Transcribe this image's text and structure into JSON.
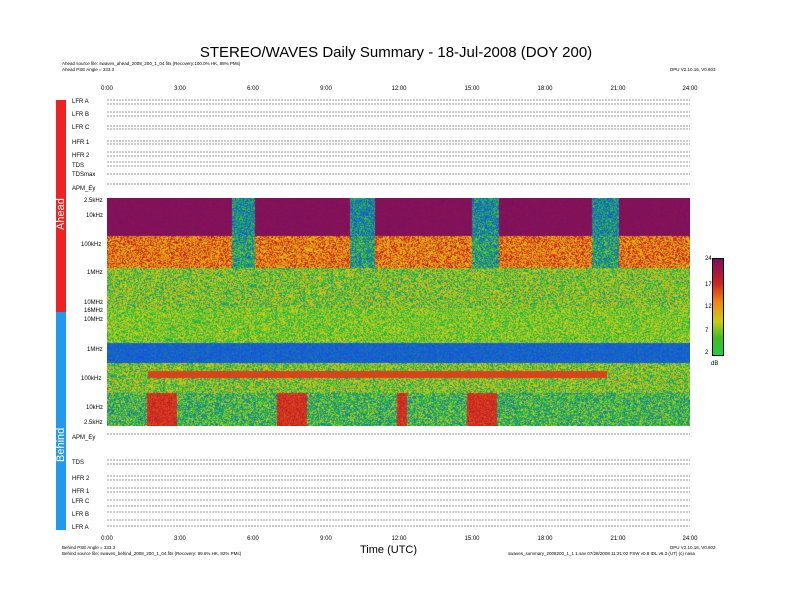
{
  "page": {
    "title": "STEREO/WAVES Daily Summary - 18-Jul-2008 (DOY 200)",
    "ahead_source": "Ahead source file: swaves_ahead_2008_200_1_04.fits (Recovery:100.0% HK, 88% PMs)",
    "ahead_pse": "Ahead PSE Angle = 333.3",
    "ahead_version": "DPU V2.10.16, V0.603",
    "behind_pse": "Behind PSE Angle = 333.3",
    "behind_source": "Behind source file: swaves_behind_2008_200_1_04.fits (Recovery: 99.6% HK, 82% PMs)",
    "behind_version": "DPU V2.10.16, V0.603",
    "footer_right": "swaves_summary_2008200_1_1 1.sav  07/28/2008  11:31:02 FSW v0.8 IDL v6.3 (UT)  (c) nasa",
    "xlabel": "Time (UTC)",
    "ahead_label": "Ahead",
    "behind_label": "Behind",
    "cbar_unit": "dB"
  },
  "colors": {
    "ahead_bar": "#ee2222",
    "behind_bar": "#2299ee"
  },
  "chart_data": {
    "type": "heatmap",
    "title": "STEREO/WAVES Daily Summary - 18-Jul-2008 (DOY 200)",
    "xlabel": "Time (UTC)",
    "xlim": [
      0,
      24
    ],
    "x_ticks": [
      "0:00",
      "3:00",
      "6:00",
      "9:00",
      "12:00",
      "15:00",
      "18:00",
      "21:00",
      "24:00"
    ],
    "ahead_freq_ticks": [
      "2.5kHz",
      "10kHz",
      "100kHz",
      "1MHz",
      "10MHz",
      "16MHz"
    ],
    "behind_freq_ticks": [
      "10MHz",
      "1MHz",
      "100kHz",
      "10kHz",
      "2.5kHz"
    ],
    "colorbar": {
      "label": "dB",
      "ticks": [
        "24",
        "17",
        "12",
        "7",
        "2"
      ],
      "range": [
        2,
        24
      ]
    },
    "ahead_rows": [
      "LFR A",
      "LFR B",
      "LFR C",
      "HFR 1",
      "HFR 2",
      "TDS",
      "TDSmax"
    ],
    "behind_rows": [
      "TDS",
      "HFR 2",
      "HFR 1",
      "LFR C",
      "LFR B",
      "LFR A"
    ],
    "apm_label": "APM_Ey"
  }
}
